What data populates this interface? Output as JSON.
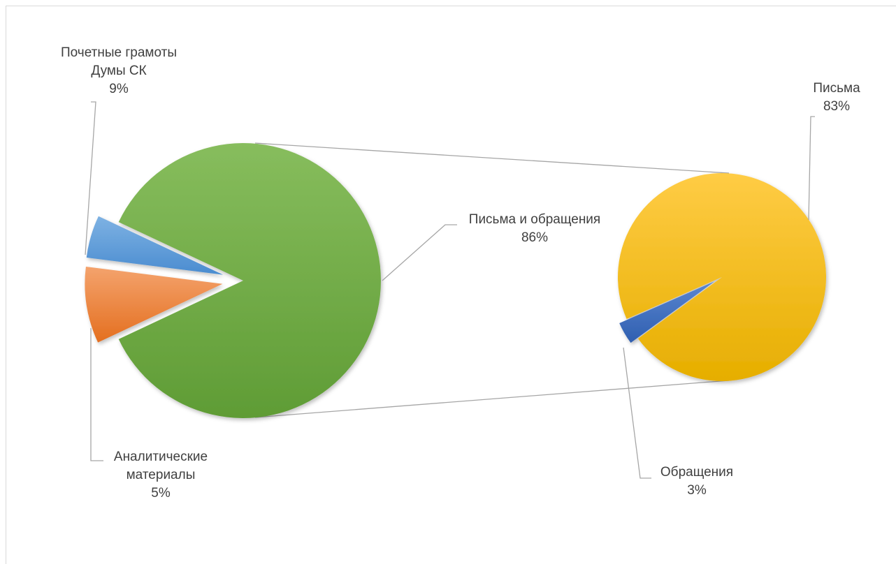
{
  "header_fragment": "",
  "chart_data": {
    "type": "pie-of-pie",
    "title": "",
    "primary": {
      "slices": [
        {
          "name": "Письма и обращения",
          "value": 86,
          "label": "86%",
          "color": "#70ad47"
        },
        {
          "name": "Почетные грамоты Думы СК",
          "value": 9,
          "label": "9%",
          "color": "#ed7d31"
        },
        {
          "name": "Аналитические материалы",
          "value": 5,
          "label": "5%",
          "color": "#5b9bd5"
        }
      ]
    },
    "secondary": {
      "source": "Письма и обращения",
      "slices": [
        {
          "name": "Письма",
          "value": 83,
          "label": "83%",
          "color": "#ffc000"
        },
        {
          "name": "Обращения",
          "value": 3,
          "label": "3%",
          "color": "#4472c4"
        }
      ]
    }
  }
}
